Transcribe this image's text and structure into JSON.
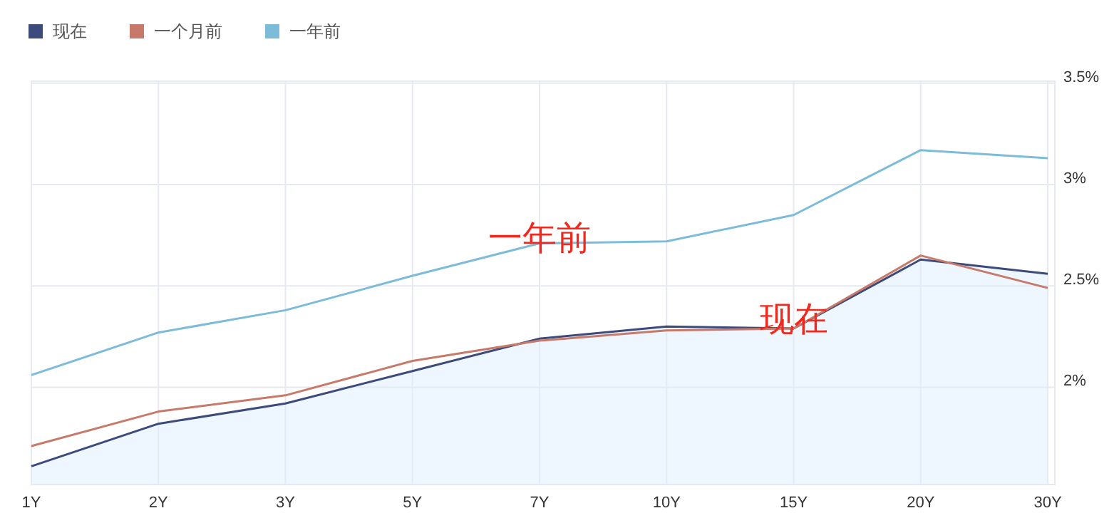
{
  "chart_data": {
    "type": "line",
    "categories": [
      "1Y",
      "2Y",
      "3Y",
      "5Y",
      "7Y",
      "10Y",
      "15Y",
      "20Y",
      "30Y"
    ],
    "series": [
      {
        "name": "现在",
        "type": "area",
        "color": "#3d4a7c",
        "values": [
          1.61,
          1.82,
          1.92,
          2.08,
          2.24,
          2.3,
          2.29,
          2.63,
          2.56
        ]
      },
      {
        "name": "一个月前",
        "color": "#c87a6a",
        "values": [
          1.71,
          1.88,
          1.96,
          2.13,
          2.23,
          2.28,
          2.29,
          2.65,
          2.49
        ]
      },
      {
        "name": "一年前",
        "color": "#7dbcd9",
        "values": [
          2.06,
          2.27,
          2.38,
          2.55,
          2.71,
          2.72,
          2.85,
          3.17,
          3.13
        ]
      }
    ],
    "ylim": [
      1.52,
      3.51
    ],
    "yticks": [
      {
        "value": 2,
        "label": "2%"
      },
      {
        "value": 2.5,
        "label": "2.5%"
      },
      {
        "value": 3,
        "label": "3%"
      },
      {
        "value": 3.5,
        "label": "3.5%"
      }
    ],
    "grid": true,
    "legend": "top left",
    "marker": "none",
    "annotations": [
      {
        "text": "一年前",
        "x": "7Y",
        "y": 2.68
      },
      {
        "text": "现在",
        "x": "15Y",
        "y": 2.28
      }
    ]
  }
}
